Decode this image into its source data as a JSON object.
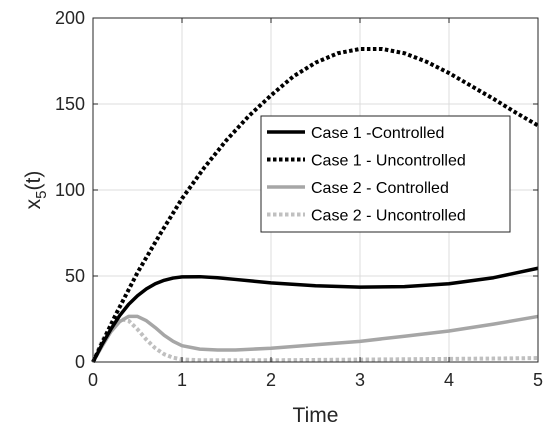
{
  "chart_data": {
    "type": "line",
    "title": "",
    "xlabel": "Time",
    "ylabel_main": "x",
    "ylabel_sub": "5",
    "ylabel_tail": "(t)",
    "xlim": [
      0,
      5
    ],
    "ylim": [
      0,
      200
    ],
    "x_ticks": [
      0,
      1,
      2,
      3,
      4,
      5
    ],
    "y_ticks": [
      0,
      50,
      100,
      150,
      200
    ],
    "grid": true,
    "legend_position": "upper-right",
    "series": [
      {
        "name": "Case 1 -Controlled",
        "color": "#000000",
        "style": "solid",
        "x": [
          0,
          0.1,
          0.2,
          0.3,
          0.4,
          0.5,
          0.6,
          0.7,
          0.8,
          0.9,
          1.0,
          1.2,
          1.4,
          1.6,
          1.8,
          2.0,
          2.5,
          3.0,
          3.5,
          4.0,
          4.5,
          5.0
        ],
        "y": [
          0,
          10,
          19,
          27,
          33.5,
          38.5,
          42.5,
          45.5,
          47.5,
          48.8,
          49.5,
          49.6,
          49,
          48,
          47,
          46,
          44.3,
          43.5,
          43.8,
          45.5,
          49,
          54.5
        ]
      },
      {
        "name": "Case 1 - Uncontrolled",
        "color": "#000000",
        "style": "dotted",
        "x": [
          0,
          0.25,
          0.5,
          0.75,
          1.0,
          1.25,
          1.5,
          1.75,
          2.0,
          2.25,
          2.5,
          2.75,
          3.0,
          3.25,
          3.5,
          3.75,
          4.0,
          4.25,
          4.5,
          4.75,
          5.0
        ],
        "y": [
          0,
          27,
          52,
          74,
          95,
          113,
          129,
          143,
          155,
          166,
          174,
          179.5,
          182,
          182,
          179.5,
          174.5,
          168,
          160.5,
          153,
          145,
          137.5
        ]
      },
      {
        "name": "Case 2 - Controlled",
        "color": "#a6a6a6",
        "style": "solid",
        "x": [
          0,
          0.1,
          0.2,
          0.3,
          0.4,
          0.5,
          0.6,
          0.7,
          0.8,
          0.9,
          1.0,
          1.2,
          1.4,
          1.6,
          1.8,
          2.0,
          2.5,
          3.0,
          3.5,
          4.0,
          4.5,
          5.0
        ],
        "y": [
          0,
          9,
          17.5,
          23.5,
          26.5,
          26.5,
          24,
          20,
          15.5,
          12,
          9.5,
          7.5,
          7,
          7,
          7.5,
          8,
          10,
          12,
          15,
          18,
          22,
          26.5
        ]
      },
      {
        "name": "Case 2 - Uncontrolled",
        "color": "#c0c0c0",
        "style": "dotted",
        "x": [
          0,
          0.1,
          0.2,
          0.3,
          0.4,
          0.5,
          0.6,
          0.7,
          0.8,
          0.9,
          1.0,
          1.2,
          1.5,
          2.0,
          2.5,
          3.0,
          3.5,
          4.0,
          4.5,
          5.0
        ],
        "y": [
          0,
          12,
          21,
          25,
          24,
          19,
          13,
          8,
          4.5,
          2.5,
          1.5,
          1,
          1,
          1,
          1.2,
          1.4,
          1.6,
          1.8,
          2,
          2.3
        ]
      }
    ]
  }
}
